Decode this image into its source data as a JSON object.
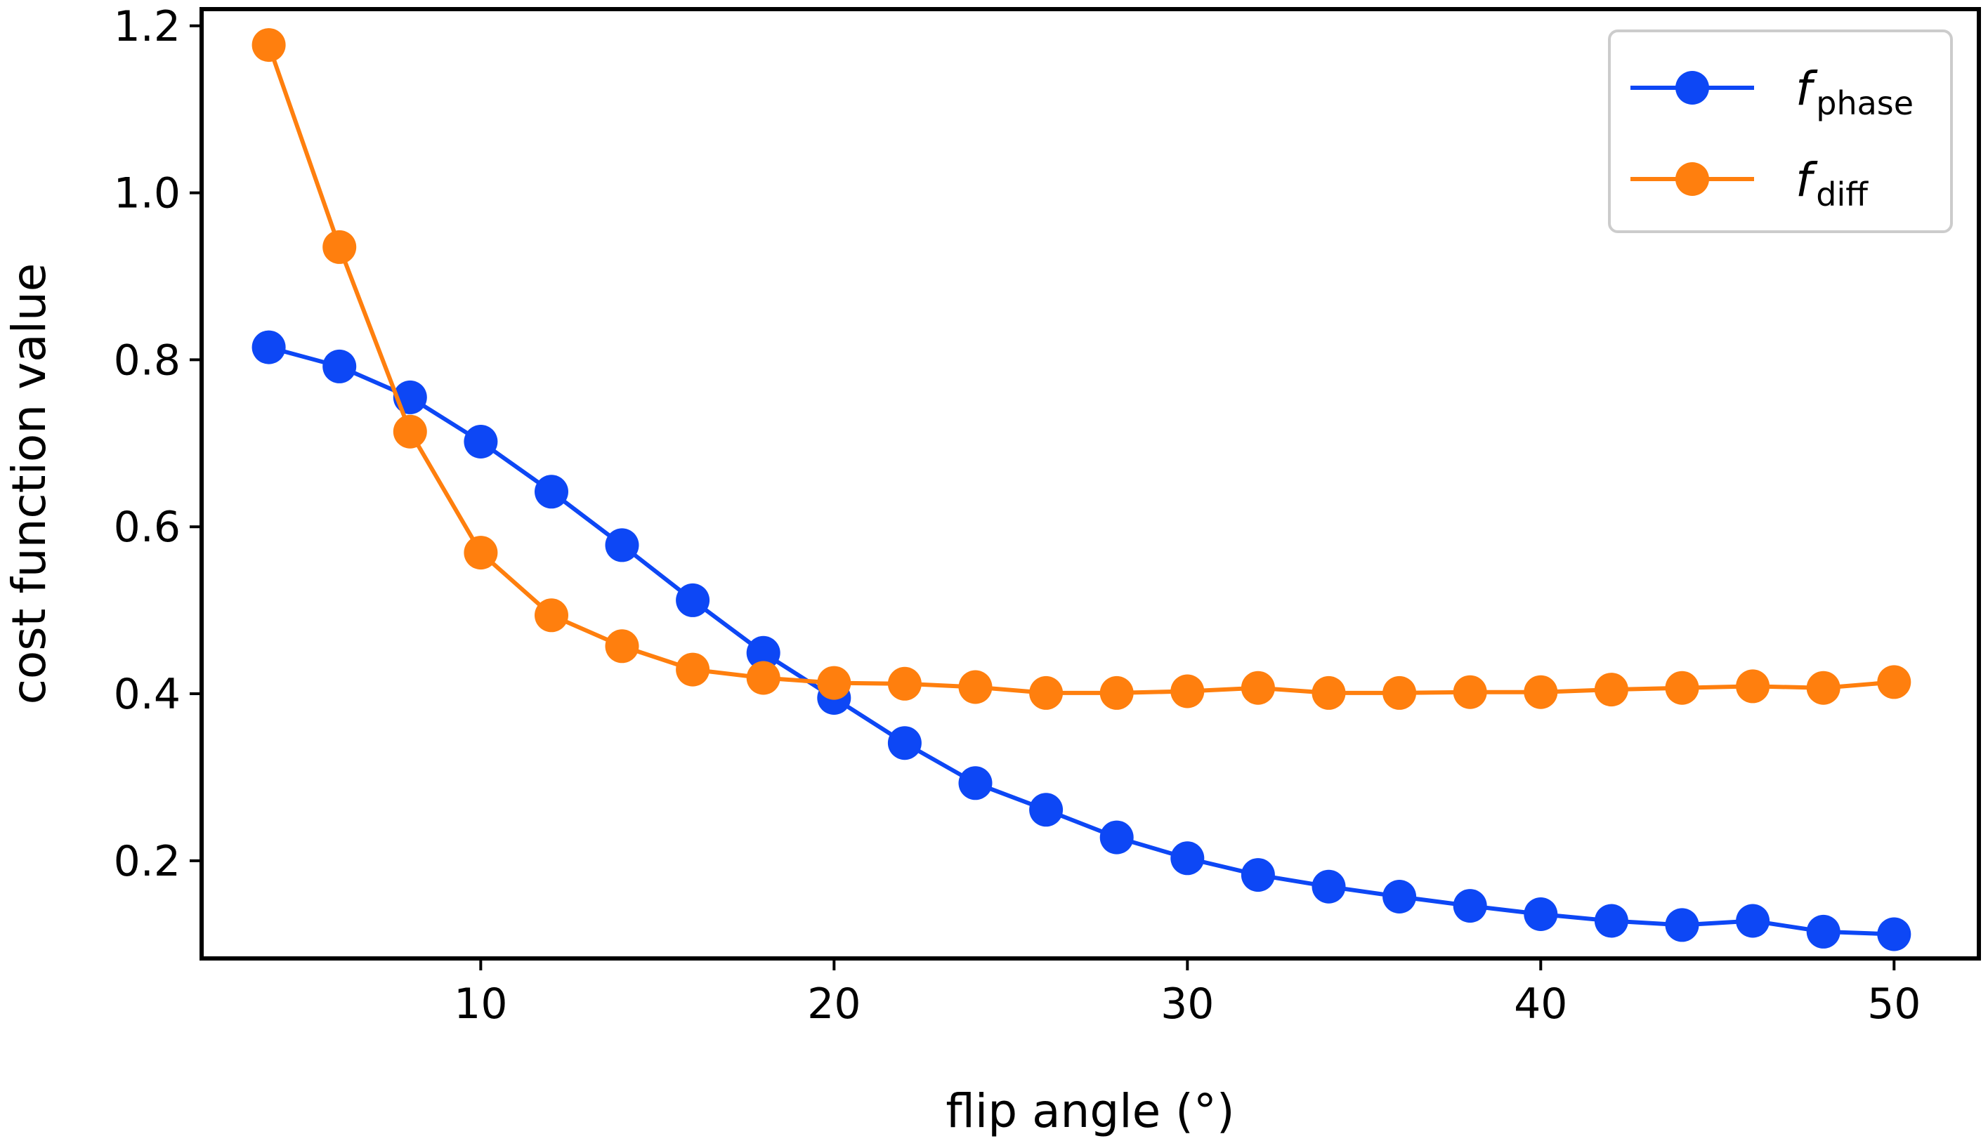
{
  "chart_data": {
    "type": "line",
    "title": "",
    "xlabel": "flip angle (°)",
    "ylabel": "cost function value",
    "x": [
      4,
      6,
      8,
      10,
      12,
      14,
      16,
      18,
      20,
      22,
      24,
      26,
      28,
      30,
      32,
      34,
      36,
      38,
      40,
      42,
      44,
      46,
      48,
      50
    ],
    "xlim": [
      2.1,
      52.4
    ],
    "ylim": [
      0.083,
      1.22
    ],
    "xticks": [
      10,
      20,
      30,
      40,
      50
    ],
    "yticks": [
      0.2,
      0.4,
      0.6,
      0.8,
      1.0,
      1.2
    ],
    "xtick_labels": [
      "10",
      "20",
      "30",
      "40",
      "50"
    ],
    "ytick_labels": [
      "0.2",
      "0.4",
      "0.6",
      "0.8",
      "1.0",
      "1.2"
    ],
    "grid": false,
    "legend_position": "top-right",
    "series": [
      {
        "name": "f_phase",
        "legend_main": "f",
        "legend_sub": "phase",
        "color": "#0d47f5",
        "values": [
          0.815,
          0.792,
          0.755,
          0.702,
          0.642,
          0.578,
          0.512,
          0.449,
          0.395,
          0.341,
          0.293,
          0.261,
          0.228,
          0.203,
          0.183,
          0.169,
          0.157,
          0.146,
          0.136,
          0.128,
          0.123,
          0.128,
          0.115,
          0.112
        ]
      },
      {
        "name": "f_diff",
        "legend_main": "f",
        "legend_sub": "diff",
        "color": "#ff7f0e",
        "values": [
          1.177,
          0.935,
          0.714,
          0.569,
          0.494,
          0.457,
          0.429,
          0.419,
          0.413,
          0.412,
          0.408,
          0.401,
          0.401,
          0.403,
          0.407,
          0.401,
          0.401,
          0.402,
          0.402,
          0.405,
          0.407,
          0.409,
          0.407,
          0.414
        ]
      }
    ]
  }
}
